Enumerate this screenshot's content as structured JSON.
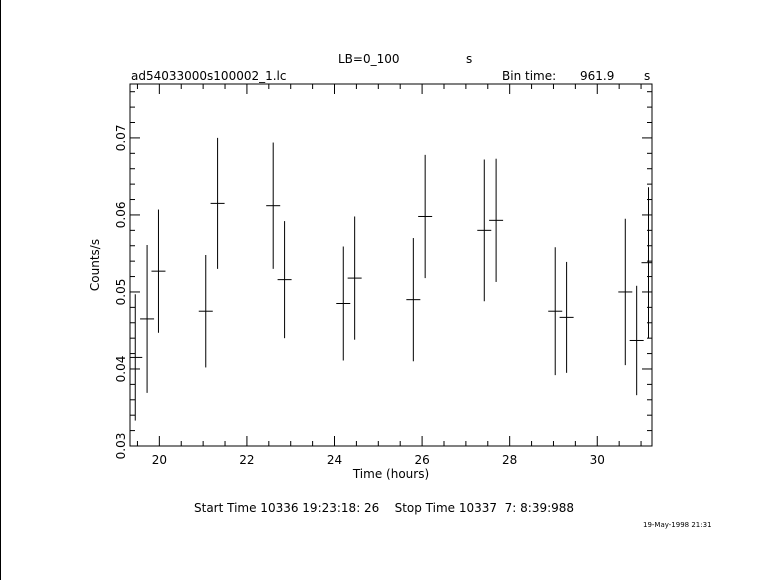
{
  "header": {
    "lb_label": "LB=0_100",
    "lb_unit": "s",
    "filename": "ad54033000s100002_1.lc",
    "bin_time_label": "Bin time:",
    "bin_time_value": "961.9",
    "bin_time_unit": "s"
  },
  "footer": {
    "times": "Start Time 10336 19:23:18: 26    Stop Time 10337  7: 8:39:988",
    "date_stamp": "19-May-1998 21:31"
  },
  "chart_data": {
    "type": "scatter",
    "xlabel": "Time (hours)",
    "ylabel": "Counts/s",
    "xlim": [
      19.33,
      31.25
    ],
    "ylim": [
      0.03,
      0.077
    ],
    "xticks": [
      20,
      22,
      24,
      26,
      28,
      30
    ],
    "yticks": [
      0.03,
      0.04,
      0.05,
      0.06,
      0.07
    ],
    "grid": false,
    "points": [
      {
        "x": 19.45,
        "y": 0.0415,
        "err": 0.0082
      },
      {
        "x": 19.72,
        "y": 0.0465,
        "err": 0.0096
      },
      {
        "x": 19.98,
        "y": 0.0527,
        "err": 0.008
      },
      {
        "x": 21.06,
        "y": 0.0475,
        "err": 0.0073
      },
      {
        "x": 21.33,
        "y": 0.0615,
        "err": 0.0085
      },
      {
        "x": 22.6,
        "y": 0.0612,
        "err": 0.0082
      },
      {
        "x": 22.86,
        "y": 0.0516,
        "err": 0.0076
      },
      {
        "x": 24.2,
        "y": 0.0485,
        "err": 0.0074
      },
      {
        "x": 24.46,
        "y": 0.0518,
        "err": 0.008
      },
      {
        "x": 25.8,
        "y": 0.049,
        "err": 0.008
      },
      {
        "x": 26.07,
        "y": 0.0598,
        "err": 0.008
      },
      {
        "x": 27.42,
        "y": 0.058,
        "err": 0.0092
      },
      {
        "x": 27.69,
        "y": 0.0593,
        "err": 0.008
      },
      {
        "x": 29.04,
        "y": 0.0475,
        "err": 0.0083
      },
      {
        "x": 29.3,
        "y": 0.0467,
        "err": 0.0072
      },
      {
        "x": 30.64,
        "y": 0.05,
        "err": 0.0095
      },
      {
        "x": 30.9,
        "y": 0.0437,
        "err": 0.0071
      },
      {
        "x": 31.17,
        "y": 0.0538,
        "err": 0.0098
      }
    ]
  }
}
